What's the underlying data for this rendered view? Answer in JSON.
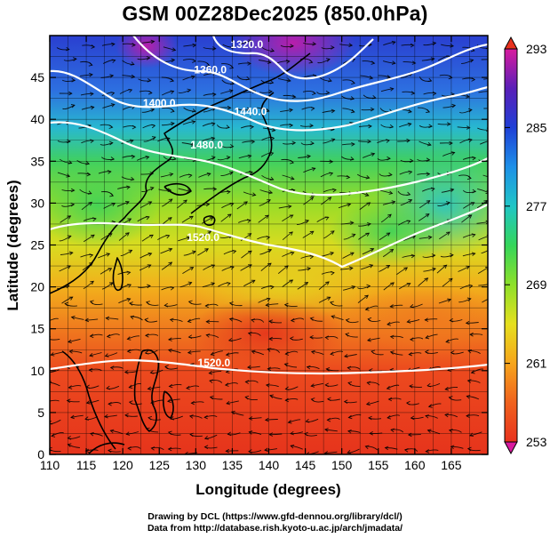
{
  "title": "GSM 00Z28Dec2025 (850.0hPa)",
  "axes": {
    "xlabel": "Longitude (degrees)",
    "ylabel": "Latitude  (degrees)",
    "xlim": [
      110,
      170
    ],
    "ylim": [
      0,
      50
    ],
    "xticks": [
      110,
      115,
      120,
      125,
      130,
      135,
      140,
      145,
      150,
      155,
      160,
      165
    ],
    "yticks": [
      0,
      5,
      10,
      15,
      20,
      25,
      30,
      35,
      40,
      45
    ]
  },
  "colorbar": {
    "min": 253,
    "max": 293,
    "tick_labels": [
      "293",
      "285",
      "277",
      "269",
      "261",
      "253"
    ],
    "tick_values": [
      293,
      285,
      277,
      269,
      261,
      253
    ],
    "stops": [
      "#d81b9e",
      "#5a1fb8",
      "#1f3fd6",
      "#1e90e8",
      "#20c6c6",
      "#35d65a",
      "#8ee02a",
      "#e6e01e",
      "#f6a51c",
      "#f0621e",
      "#e8321e"
    ]
  },
  "contours": [
    {
      "label": "1320.0",
      "lon": 137.0,
      "lat": 48.5
    },
    {
      "label": "1360.0",
      "lon": 132.0,
      "lat": 45.5
    },
    {
      "label": "1400.0",
      "lon": 125.0,
      "lat": 41.5
    },
    {
      "label": "1440.0",
      "lon": 137.5,
      "lat": 40.5
    },
    {
      "label": "1480.0",
      "lon": 131.5,
      "lat": 36.5
    },
    {
      "label": "1520.0",
      "lon": 131.0,
      "lat": 25.5
    },
    {
      "label": "1520.0",
      "lon": 132.5,
      "lat": 10.5
    }
  ],
  "credits": {
    "line1": "Drawing by DCL (https://www.gfd-dennou.org/library/dcl/)",
    "line2": "Data from http://database.rish.kyoto-u.ac.jp/arch/jmadata/"
  }
}
